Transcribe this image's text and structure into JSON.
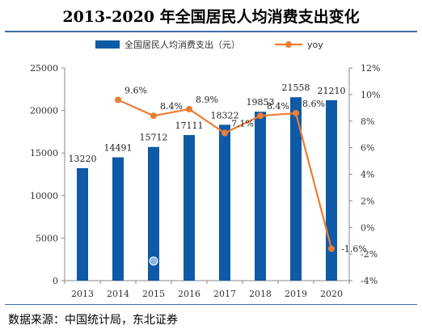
{
  "title": "2013-2020 年全国居民人均消费支出变化",
  "source": "数据来源：中国统计局，东北证券",
  "chart_data": {
    "type": "bar",
    "categories": [
      "2013",
      "2014",
      "2015",
      "2016",
      "2017",
      "2018",
      "2019",
      "2020"
    ],
    "series": [
      {
        "name": "全国居民人均消费支出（元）",
        "type": "bar",
        "axis": "left",
        "color": "#0e5aa7",
        "values": [
          13220,
          14491,
          15712,
          17111,
          18322,
          19853,
          21558,
          21210
        ],
        "labels": [
          "13220",
          "14491",
          "15712",
          "17111",
          "18322",
          "19853",
          "21558",
          "21210"
        ]
      },
      {
        "name": "yoy",
        "type": "line",
        "axis": "right",
        "color": "#ed7d31",
        "values": [
          null,
          9.6,
          8.4,
          8.9,
          7.1,
          8.4,
          8.6,
          -1.6
        ],
        "labels": [
          "",
          "9.6%",
          "8.4%",
          "8.9%",
          "7.1%",
          "8.4%",
          "8.6%",
          "-1.6%"
        ]
      }
    ],
    "y_left": {
      "lim": [
        0,
        25000
      ],
      "ticks": [
        "0",
        "5000",
        "10000",
        "15000",
        "20000",
        "25000"
      ]
    },
    "y_right": {
      "lim": [
        -4,
        12
      ],
      "ticks": [
        "-4%",
        "-2%",
        "0%",
        "2%",
        "4%",
        "6%",
        "8%",
        "10%",
        "12%"
      ]
    },
    "legend_position": "top",
    "grid": false,
    "marker_note": {
      "category": "2015",
      "value": 2300,
      "color": "#8ab4e8"
    }
  }
}
